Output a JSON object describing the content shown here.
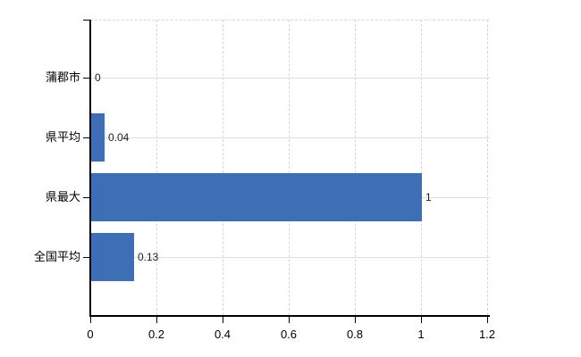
{
  "chart_data": {
    "type": "bar",
    "orientation": "horizontal",
    "title": "",
    "xlabel": "",
    "ylabel": "",
    "categories": [
      "蒲郡市",
      "県平均",
      "県最大",
      "全国平均"
    ],
    "values": [
      0,
      0.04,
      1,
      0.13
    ],
    "value_labels": [
      "0",
      "0.04",
      "1",
      "0.13"
    ],
    "x_ticks": [
      0,
      0.2,
      0.4,
      0.6,
      0.8,
      1,
      1.2
    ],
    "x_tick_labels": [
      "0",
      "0.2",
      "0.4",
      "0.6",
      "0.8",
      "1",
      "1.2"
    ],
    "xlim": [
      0,
      1.2
    ],
    "grid": true,
    "legend": false,
    "colors": {
      "bar": "#3e6fb4",
      "axis": "#000000",
      "grid_horizontal": "#dde0d8",
      "grid_vertical": "#d7d7d3",
      "value_label_text": "#1f1f1f",
      "tick_label_text": "#000000",
      "background": "#ffffff"
    }
  }
}
